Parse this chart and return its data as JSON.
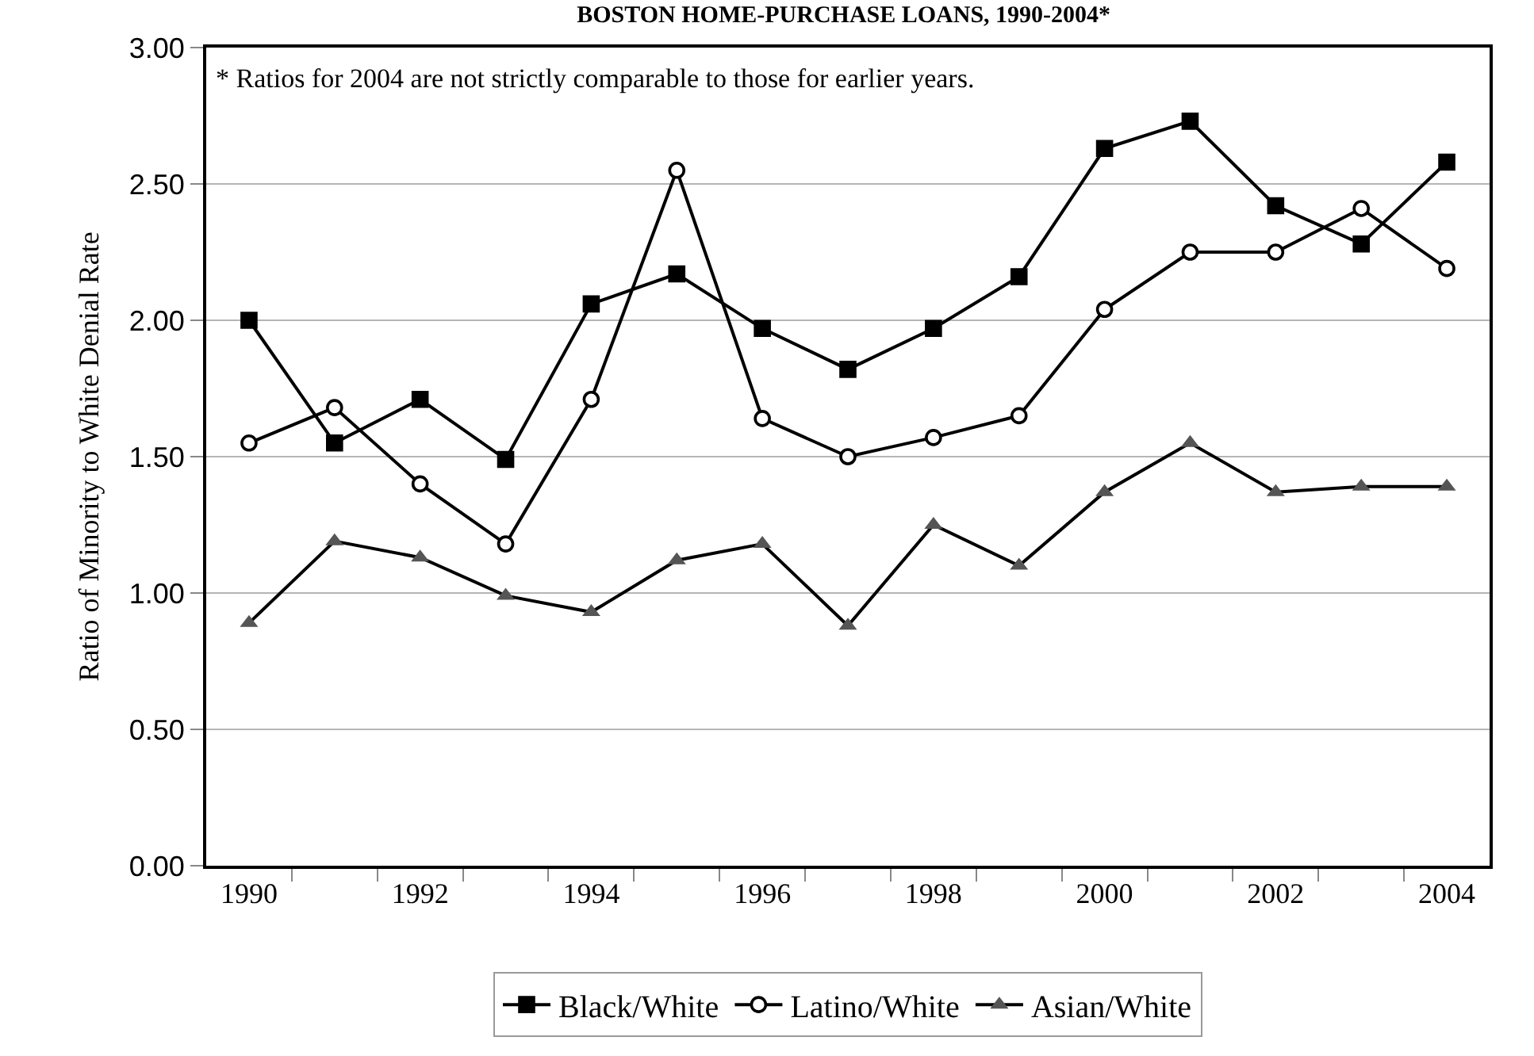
{
  "chart_data": {
    "type": "line",
    "title": "BOSTON HOME-PURCHASE LOANS, 1990-2004*",
    "ylabel": "Ratio of Minority to White Denial Rate",
    "annotations": [
      "* Ratios for 2004 are not strictly comparable to those for earlier years."
    ],
    "categories": [
      "1990",
      null,
      "1992",
      null,
      "1994",
      null,
      "1996",
      null,
      "1998",
      null,
      "2000",
      null,
      "2002",
      null,
      "2004"
    ],
    "series": [
      {
        "name": "Black/White",
        "color": "#000000",
        "marker": "square",
        "values": [
          2.0,
          1.55,
          1.71,
          1.49,
          2.06,
          2.17,
          1.97,
          1.82,
          1.97,
          2.16,
          2.63,
          2.73,
          2.42,
          2.28,
          2.58
        ]
      },
      {
        "name": "Latino/White",
        "color": "#000000",
        "marker": "circle",
        "values": [
          1.55,
          1.68,
          1.4,
          1.18,
          1.71,
          2.55,
          1.64,
          1.5,
          1.57,
          1.65,
          2.04,
          2.25,
          2.25,
          2.41,
          2.19
        ]
      },
      {
        "name": "Asian/White",
        "color": "#000000",
        "marker": "triangle",
        "values": [
          0.89,
          1.19,
          1.13,
          0.99,
          0.93,
          1.12,
          1.18,
          0.88,
          1.25,
          1.1,
          1.37,
          1.55,
          1.37,
          1.39,
          1.39
        ]
      }
    ],
    "ylim": [
      0,
      3
    ],
    "yticks": [
      {
        "value": 0,
        "label": "0.00"
      },
      {
        "value": 0.5,
        "label": "0.50"
      },
      {
        "value": 1,
        "label": "1.00"
      },
      {
        "value": 1.5,
        "label": "1.50"
      },
      {
        "value": 2,
        "label": "2.00"
      },
      {
        "value": 2.5,
        "label": "2.50"
      },
      {
        "value": 3,
        "label": "3.00"
      }
    ],
    "grid": "y",
    "legend": "bottom"
  }
}
